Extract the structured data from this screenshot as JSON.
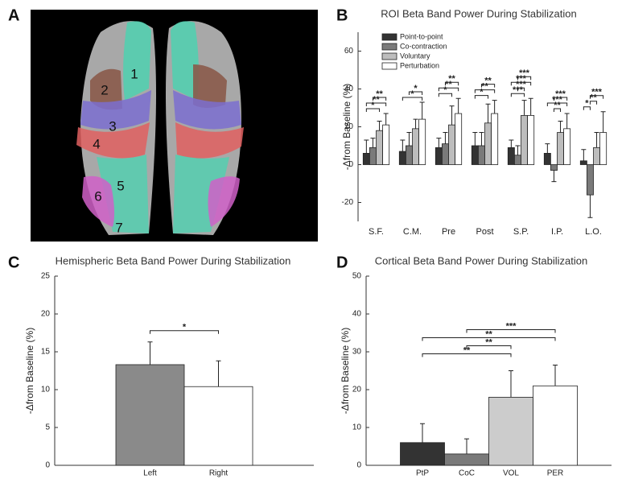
{
  "chart_data": [
    {
      "type": "image",
      "panel": "A",
      "region_labels": [
        "1",
        "2",
        "3",
        "4",
        "5",
        "6",
        "7"
      ]
    },
    {
      "type": "grouped_bar",
      "panel": "B",
      "title": "ROI Beta Band Power During Stabilization",
      "ylabel": "-Δfrom Baseline (%)",
      "categories": [
        "S.F.",
        "C.M.",
        "Pre",
        "Post",
        "S.P.",
        "I.P.",
        "L.O."
      ],
      "series": [
        {
          "name": "Point-to-point",
          "color": "#333333",
          "values": [
            6,
            7,
            9,
            10,
            9,
            6,
            2
          ],
          "errors": [
            7,
            6,
            5,
            7,
            4,
            5,
            6
          ]
        },
        {
          "name": "Co-contraction",
          "color": "#7a7a7a",
          "values": [
            9,
            10,
            11,
            10,
            5,
            -3,
            -16
          ],
          "errors": [
            5,
            7,
            6,
            7,
            5,
            6,
            12
          ]
        },
        {
          "name": "Voluntary",
          "color": "#bdbdbd",
          "values": [
            18,
            19,
            21,
            22,
            26,
            17,
            9
          ],
          "errors": [
            5,
            5,
            10,
            10,
            8,
            6,
            8
          ]
        },
        {
          "name": "Perturbation",
          "color": "#ffffff",
          "values": [
            21,
            24,
            27,
            27,
            26,
            19,
            17
          ],
          "errors": [
            6,
            9,
            8,
            7,
            9,
            8,
            11
          ]
        }
      ],
      "comparisons": [
        {
          "category": "S.F.",
          "from": "Point-to-point",
          "to": "Voluntary",
          "label": "*"
        },
        {
          "category": "S.F.",
          "from": "Point-to-point",
          "to": "Perturbation",
          "label": "**"
        },
        {
          "category": "S.F.",
          "from": "Co-contraction",
          "to": "Perturbation",
          "label": "**"
        },
        {
          "category": "C.M.",
          "from": "Point-to-point",
          "to": "Perturbation",
          "label": "*"
        },
        {
          "category": "C.M.",
          "from": "Co-contraction",
          "to": "Perturbation",
          "label": "*"
        },
        {
          "category": "Pre",
          "from": "Point-to-point",
          "to": "Voluntary",
          "label": "*"
        },
        {
          "category": "Pre",
          "from": "Point-to-point",
          "to": "Perturbation",
          "label": "**"
        },
        {
          "category": "Pre",
          "from": "Co-contraction",
          "to": "Perturbation",
          "label": "**"
        },
        {
          "category": "Post",
          "from": "Point-to-point",
          "to": "Voluntary",
          "label": "*"
        },
        {
          "category": "Post",
          "from": "Point-to-point",
          "to": "Perturbation",
          "label": "**"
        },
        {
          "category": "Post",
          "from": "Co-contraction",
          "to": "Perturbation",
          "label": "**"
        },
        {
          "category": "S.P.",
          "from": "Point-to-point",
          "to": "Voluntary",
          "label": "***"
        },
        {
          "category": "S.P.",
          "from": "Co-contraction",
          "to": "Voluntary",
          "label": "***"
        },
        {
          "category": "S.P.",
          "from": "Point-to-point",
          "to": "Perturbation",
          "label": "***"
        },
        {
          "category": "S.P.",
          "from": "Co-contraction",
          "to": "Perturbation",
          "label": "***"
        },
        {
          "category": "I.P.",
          "from": "Co-contraction",
          "to": "Voluntary",
          "label": "**"
        },
        {
          "category": "I.P.",
          "from": "Point-to-point",
          "to": "Perturbation",
          "label": "***"
        },
        {
          "category": "I.P.",
          "from": "Co-contraction",
          "to": "Perturbation",
          "label": "***"
        },
        {
          "category": "L.O.",
          "from": "Point-to-point",
          "to": "Co-contraction",
          "label": "*"
        },
        {
          "category": "L.O.",
          "from": "Co-contraction",
          "to": "Voluntary",
          "label": "**"
        },
        {
          "category": "L.O.",
          "from": "Co-contraction",
          "to": "Perturbation",
          "label": "***"
        }
      ],
      "ylim": [
        -30,
        70
      ],
      "yticks": [
        -20,
        0,
        20,
        40,
        60
      ],
      "legend": "upper left",
      "grid": false
    },
    {
      "type": "bar",
      "panel": "C",
      "title": "Hemispheric Beta Band Power During Stabilization",
      "ylabel": "-Δfrom Baseline (%)",
      "categories": [
        "Left",
        "Right"
      ],
      "values": [
        13.3,
        10.4
      ],
      "errors": [
        3,
        3.4
      ],
      "colors": [
        "#8a8a8a",
        "#ffffff"
      ],
      "comparisons": [
        {
          "from": "Left",
          "to": "Right",
          "label": "*"
        }
      ],
      "ylim": [
        0,
        25
      ],
      "yticks": [
        0,
        5,
        10,
        15,
        20,
        25
      ],
      "grid": false
    },
    {
      "type": "bar",
      "panel": "D",
      "title": "Cortical Beta Band Power During Stabilization",
      "ylabel": "-Δfrom Baseline (%)",
      "categories": [
        "PtP",
        "CoC",
        "VOL",
        "PER"
      ],
      "values": [
        6,
        3,
        18,
        21
      ],
      "errors": [
        5,
        4,
        7,
        5.5
      ],
      "colors": [
        "#333333",
        "#7a7a7a",
        "#cccccc",
        "#ffffff"
      ],
      "comparisons": [
        {
          "from": "PtP",
          "to": "VOL",
          "label": "**"
        },
        {
          "from": "CoC",
          "to": "VOL",
          "label": "**"
        },
        {
          "from": "PtP",
          "to": "PER",
          "label": "**"
        },
        {
          "from": "CoC",
          "to": "PER",
          "label": "***"
        }
      ],
      "ylim": [
        0,
        50
      ],
      "yticks": [
        0,
        10,
        20,
        30,
        40,
        50
      ],
      "grid": false
    }
  ]
}
